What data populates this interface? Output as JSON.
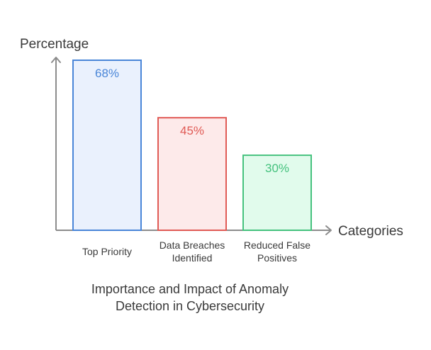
{
  "chart_data": {
    "type": "bar",
    "ylabel": "Percentage",
    "xlabel": "Categories",
    "categories": [
      "Top Priority",
      "Data Breaches Identified",
      "Reduced False Positives"
    ],
    "category_lines": [
      [
        "Top Priority"
      ],
      [
        "Data Breaches",
        "Identified"
      ],
      [
        "Reduced False",
        "Positives"
      ]
    ],
    "values": [
      68,
      45,
      30
    ],
    "value_labels": [
      "68%",
      "45%",
      "30%"
    ],
    "ylim": [
      0,
      68
    ],
    "grid": false,
    "legend": "none",
    "title_lines": [
      "Importance and Impact of Anomaly",
      "Detection in Cybersecurity"
    ],
    "bar_strokes": [
      "#4a86d8",
      "#e05a55",
      "#45c27e"
    ],
    "bar_fills": [
      "#eaf1fd",
      "#fdeaea",
      "#e1fbec"
    ],
    "label_colors": [
      "#4a86d8",
      "#e05a55",
      "#45c27e"
    ],
    "axis_color": "#8c8c8c",
    "text_color": "#3a3a3a"
  }
}
